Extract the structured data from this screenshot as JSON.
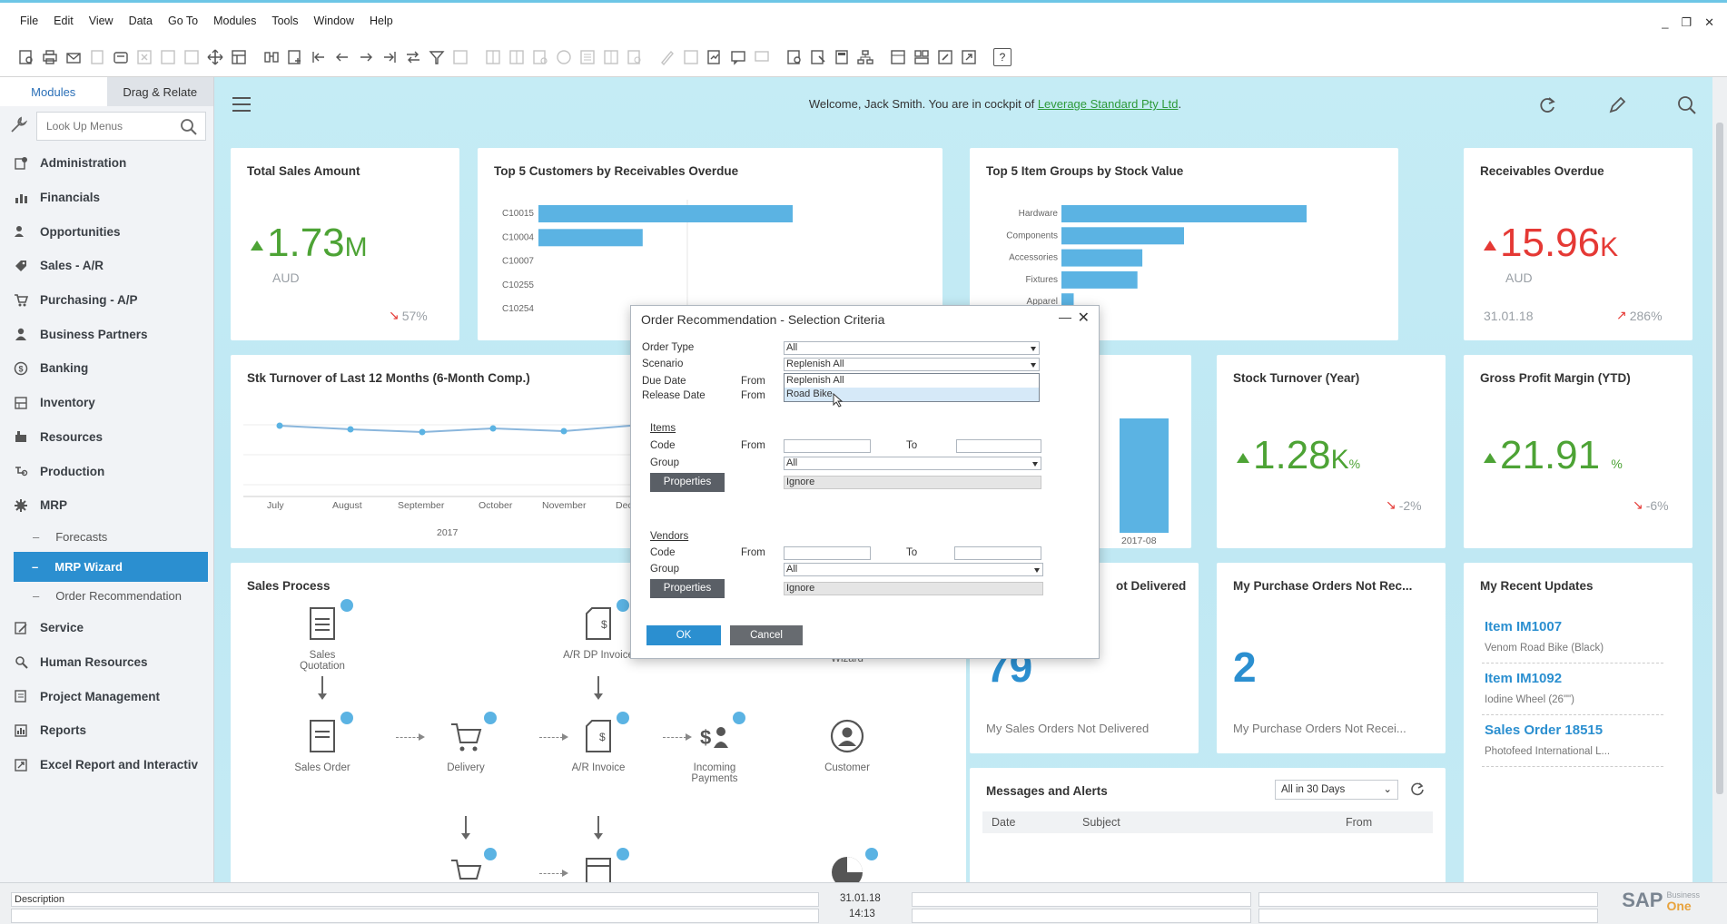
{
  "menubar": {
    "items": [
      "File",
      "Edit",
      "View",
      "Data",
      "Go To",
      "Modules",
      "Tools",
      "Window",
      "Help"
    ]
  },
  "leftpanel": {
    "tabs": [
      "Modules",
      "Drag & Relate"
    ],
    "search_placeholder": "Look Up Menus",
    "items": [
      {
        "label": "Administration",
        "icon": "administration-icon"
      },
      {
        "label": "Financials",
        "icon": "financials-icon"
      },
      {
        "label": "Opportunities",
        "icon": "opportunities-icon"
      },
      {
        "label": "Sales - A/R",
        "icon": "sales-icon"
      },
      {
        "label": "Purchasing - A/P",
        "icon": "purchasing-icon"
      },
      {
        "label": "Business Partners",
        "icon": "business-partners-icon"
      },
      {
        "label": "Banking",
        "icon": "banking-icon"
      },
      {
        "label": "Inventory",
        "icon": "inventory-icon"
      },
      {
        "label": "Resources",
        "icon": "resources-icon"
      },
      {
        "label": "Production",
        "icon": "production-icon"
      },
      {
        "label": "MRP",
        "icon": "mrp-icon"
      }
    ],
    "mrp_subitems": [
      "Forecasts",
      "MRP Wizard",
      "Order Recommendation"
    ],
    "items_after": [
      {
        "label": "Service",
        "icon": "service-icon"
      },
      {
        "label": "Human Resources",
        "icon": "human-resources-icon"
      },
      {
        "label": "Project Management",
        "icon": "project-management-icon"
      },
      {
        "label": "Reports",
        "icon": "reports-icon"
      },
      {
        "label": "Excel Report and Interactiv",
        "icon": "excel-report-icon"
      }
    ]
  },
  "cockpit": {
    "welcome_text": "Welcome, Jack Smith. You are in cockpit of ",
    "company_link": "Leverage Standard Pty Ltd",
    "welcome_end": ".",
    "total_sales": {
      "title": "Total Sales Amount",
      "value": "1.73",
      "unit": "M",
      "currency": "AUD",
      "trend": "57%",
      "trend_direction": "down"
    },
    "top5_customers": {
      "title": "Top 5 Customers by Receivables Overdue",
      "labels": [
        "C10015",
        "C10004",
        "C10007",
        "C10255",
        "C10254"
      ],
      "values": [
        100,
        41,
        0,
        0,
        0
      ]
    },
    "top5_items": {
      "title": "Top 5 Item Groups by Stock Value",
      "labels": [
        "Hardware",
        "Components",
        "Accessories",
        "Fixtures",
        "Apparel"
      ],
      "values": [
        100,
        50,
        33,
        31,
        5
      ]
    },
    "receivables_overdue": {
      "title": "Receivables Overdue",
      "value": "15.96",
      "unit": "K",
      "currency": "AUD",
      "date": "31.01.18",
      "trend": "286%",
      "trend_direction": "up"
    },
    "stk_turnover_chart": {
      "title": "Stk Turnover of Last 12 Months (6-Month Comp.)",
      "months": [
        "July",
        "August",
        "September",
        "October",
        "November",
        "Dec"
      ],
      "year": "2017"
    },
    "bar_label_2017_08": "2017-08",
    "stock_turnover": {
      "title": "Stock Turnover (Year)",
      "value": "1.28",
      "unit": "K",
      "suffix": "%",
      "trend": "-2%"
    },
    "gross_profit": {
      "title": "Gross Profit Margin (YTD)",
      "value": "21.91",
      "suffix": "%",
      "trend": "-6%"
    },
    "sales_process": {
      "title": "Sales Process",
      "nodes": {
        "sales_quotation": "Sales\nQuotation",
        "ar_dp_invoice": "A/R DP Invoice",
        "dunning_wizard": "Dunning\nWizard",
        "sales_order": "Sales Order",
        "delivery": "Delivery",
        "ar_invoice": "A/R Invoice",
        "incoming_payments": "Incoming\nPayments",
        "customer": "Customer"
      }
    },
    "sales_orders_not_delivered": {
      "title_partial": "ot Delivered",
      "value": "79",
      "caption": "My Sales Orders Not Delivered"
    },
    "purchase_orders": {
      "title": "My Purchase Orders Not Rec...",
      "value": "2",
      "caption": "My Purchase Orders Not Recei..."
    },
    "recent_updates": {
      "title": "My Recent Updates",
      "items": [
        {
          "title": "Item IM1007",
          "sub": "Venom Road Bike (Black)"
        },
        {
          "title": "Item IM1092",
          "sub": "Iodine Wheel (26\"\")"
        },
        {
          "title": "Sales Order 18515",
          "sub": "Photofeed International L..."
        }
      ]
    },
    "messages": {
      "title": "Messages and Alerts",
      "filter": "All in 30 Days",
      "columns": [
        "Date",
        "Subject",
        "From"
      ]
    }
  },
  "dialog": {
    "title": "Order Recommendation  - Selection Criteria",
    "order_type_label": "Order Type",
    "order_type_value": "All",
    "scenario_label": "Scenario",
    "scenario_value": "Replenish All",
    "scenario_options": [
      "Replenish All",
      "Road Bike"
    ],
    "due_date_label": "Due Date",
    "release_date_label": "Release Date",
    "from": "From",
    "to": "To",
    "items_label": "Items",
    "vendors_label": "Vendors",
    "code_label": "Code",
    "group_label": "Group",
    "group_value": "All",
    "properties_button": "Properties",
    "ignore_value": "Ignore",
    "ok_button": "OK",
    "cancel_button": "Cancel"
  },
  "statusbar": {
    "description": "Description",
    "date": "31.01.18",
    "time": "14:13",
    "brand": "SAP",
    "brand_sub_1": "Business",
    "brand_sub_2": "One"
  }
}
